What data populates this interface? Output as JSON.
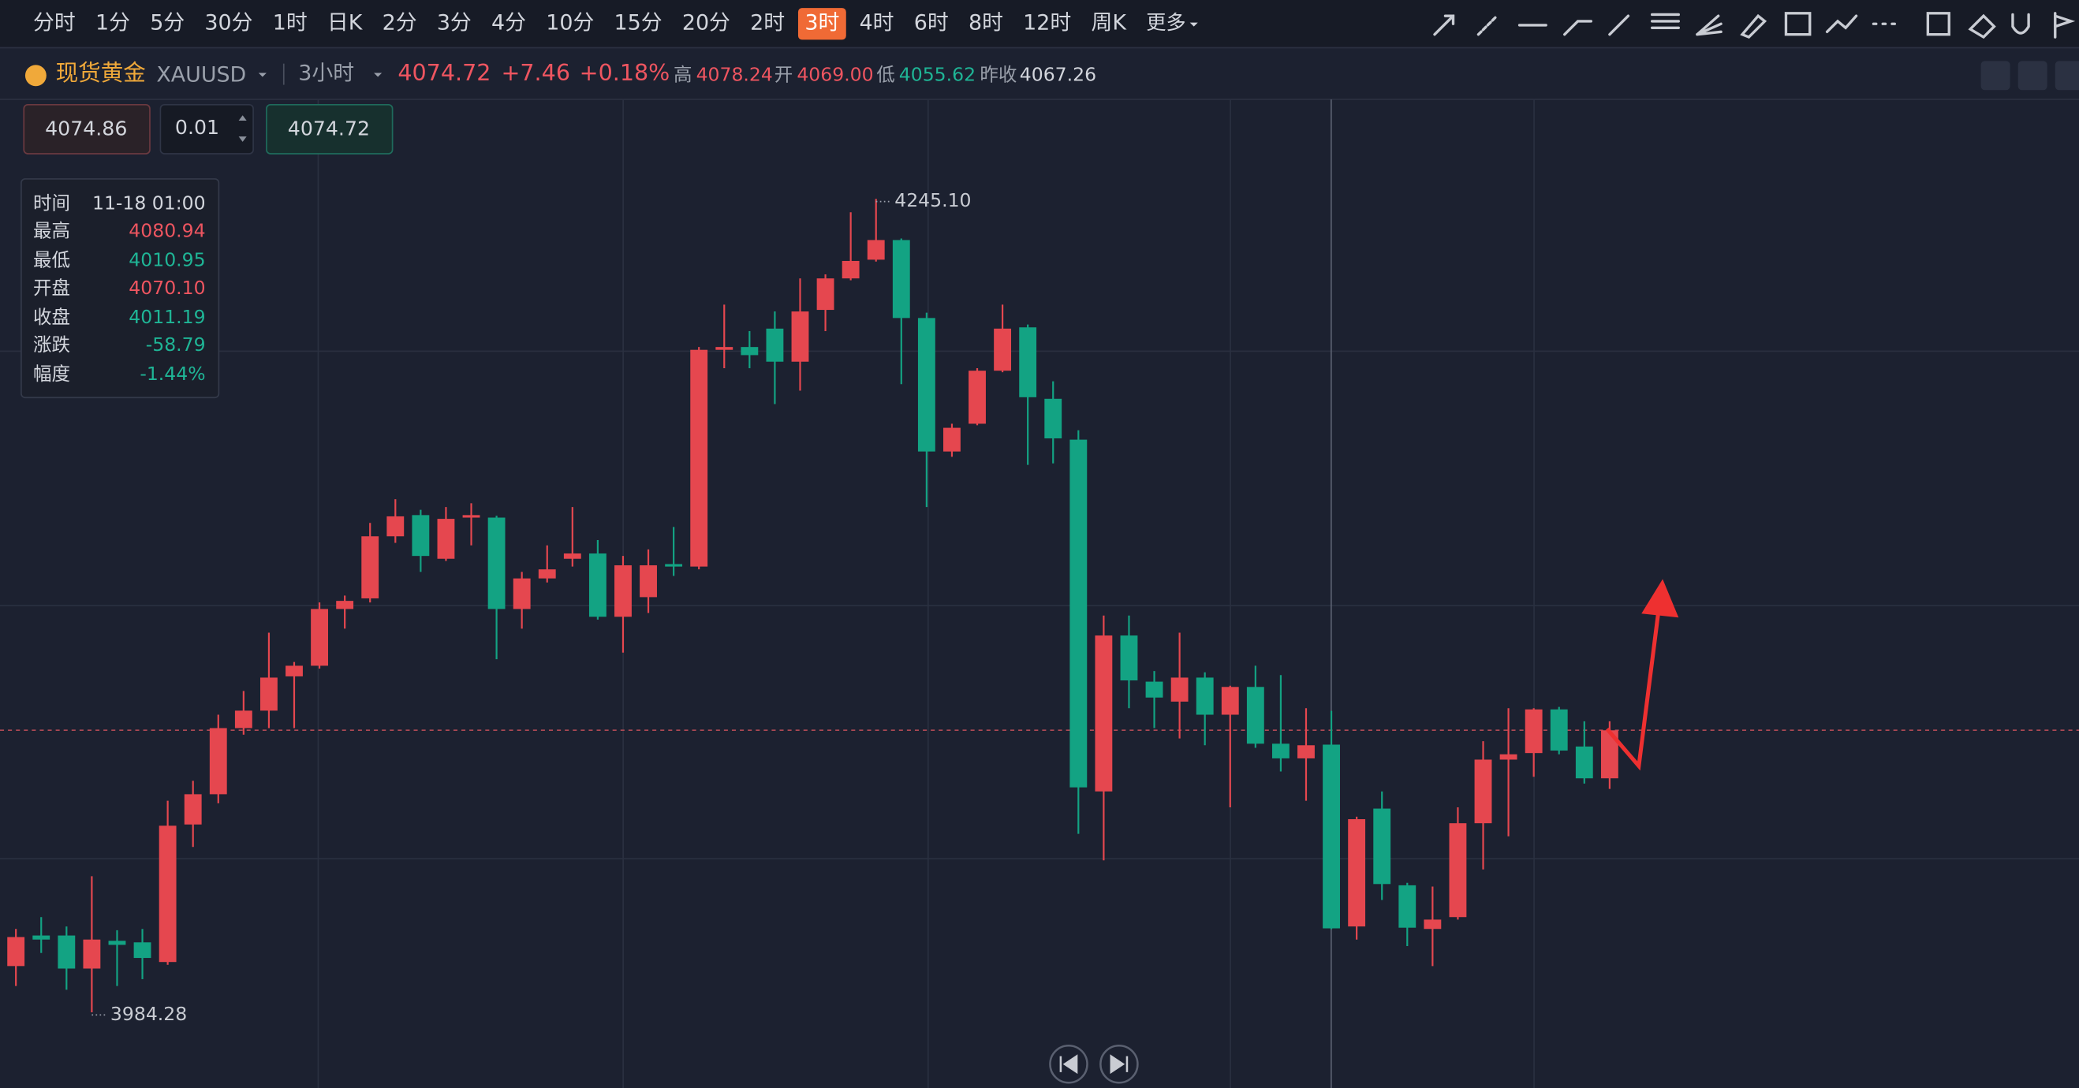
{
  "toolbar": {
    "intervals": [
      "分时",
      "1分",
      "5分",
      "30分",
      "1时",
      "日K",
      "2分",
      "3分",
      "4分",
      "10分",
      "15分",
      "20分",
      "2时",
      "3时",
      "4时",
      "6时",
      "8时",
      "12时",
      "周K"
    ],
    "active": 13,
    "more": "更多"
  },
  "header": {
    "name": "现货黄金",
    "symbol": "XAUUSD",
    "period": "3小时",
    "price": "4074.72",
    "change": "+7.46",
    "change_pct": "+0.18%",
    "high_label": "高",
    "high": "4078.24",
    "open_label": "开",
    "open": "4069.00",
    "low_label": "低",
    "low": "4055.62",
    "prev_close_label": "昨收",
    "prev_close": "4067.26"
  },
  "order": {
    "bid": "4074.86",
    "qty": "0.01",
    "ask": "4074.72"
  },
  "tooltip": {
    "rows": [
      [
        "时间",
        "11-18 01:00"
      ],
      [
        "最高",
        "4080.94"
      ],
      [
        "最低",
        "4010.95"
      ],
      [
        "开盘",
        "4070.10"
      ],
      [
        "收盘",
        "4011.19"
      ],
      [
        "涨跌",
        "-58.79"
      ],
      [
        "幅度",
        "-1.44%"
      ]
    ]
  },
  "chart_data": {
    "type": "candlestick",
    "up_color": "#e5474f",
    "down_color": "#13a383",
    "ylim": [
      3960,
      4277
    ],
    "last_price": 4074.72,
    "open": [
      3999.1,
      4008.9,
      4008.9,
      3998.3,
      4007.2,
      4006.7,
      4000.4,
      4044.5,
      4054.2,
      4075.4,
      4081.0,
      4092.0,
      4095.4,
      4113.6,
      4117.0,
      4136.9,
      4143.7,
      4129.7,
      4142.9,
      4142.9,
      4113.6,
      4123.4,
      4129.7,
      4131.4,
      4111.1,
      4117.4,
      4128.0,
      4127.2,
      4196.7,
      4197.6,
      4203.5,
      4192.9,
      4209.5,
      4219.6,
      4225.6,
      4231.9,
      4206.9,
      4164.1,
      4173.0,
      4190.0,
      4203.9,
      4181.0,
      4167.9,
      4055.1,
      4105.1,
      4090.3,
      4083.9,
      4091.6,
      4079.7,
      4088.6,
      4070.4,
      4065.7,
      4070.1,
      4011.8,
      4049.6,
      4025.0,
      4011.0,
      4014.8,
      4044.9,
      4065.3,
      4067.4,
      4081.4,
      4069.5,
      4059.3
    ],
    "high": [
      4011.0,
      4014.8,
      4011.8,
      4027.9,
      4010.6,
      4011.0,
      4052.1,
      4058.5,
      4079.7,
      4087.3,
      4106.0,
      4096.6,
      4115.7,
      4117.9,
      4141.2,
      4148.8,
      4145.4,
      4146.3,
      4147.5,
      4143.5,
      4125.5,
      4134.0,
      4146.3,
      4135.7,
      4130.6,
      4132.7,
      4139.9,
      4197.6,
      4211.2,
      4202.7,
      4209.0,
      4219.6,
      4220.9,
      4240.8,
      4245.1,
      4232.4,
      4208.6,
      4173.0,
      4190.8,
      4211.2,
      4204.8,
      4186.6,
      4170.9,
      4111.5,
      4111.5,
      4093.7,
      4106.0,
      4093.3,
      4089.0,
      4095.4,
      4092.4,
      4081.8,
      4080.94,
      4047.0,
      4055.1,
      4025.8,
      4024.6,
      4050.0,
      4071.2,
      4081.8,
      4081.8,
      4082.2,
      4077.6,
      4077.6
    ],
    "low": [
      3992.7,
      4003.3,
      3991.5,
      3984.28,
      3992.7,
      3994.9,
      3999.5,
      4037.3,
      4051.3,
      4073.3,
      4075.4,
      4075.4,
      4094.5,
      4107.3,
      4115.7,
      4134.8,
      4125.5,
      4129.0,
      4134.0,
      4097.5,
      4107.3,
      4122.1,
      4127.2,
      4110.2,
      4099.6,
      4112.3,
      4124.2,
      4126.3,
      4190.8,
      4190.8,
      4179.3,
      4183.6,
      4202.7,
      4219.0,
      4225.0,
      4185.7,
      4146.3,
      4162.4,
      4172.5,
      4189.5,
      4159.8,
      4160.3,
      4041.5,
      4033.0,
      4081.8,
      4075.4,
      4072.1,
      4069.9,
      4050.0,
      4069.1,
      4061.5,
      4052.1,
      4010.95,
      4007.6,
      4020.3,
      4005.5,
      3999.1,
      4014.0,
      4030.1,
      4040.7,
      4059.8,
      4067.0,
      4057.6,
      4055.9
    ],
    "close": [
      4008.4,
      4007.6,
      3998.3,
      4007.6,
      4005.9,
      4001.7,
      4044.1,
      4054.2,
      4075.4,
      4081.0,
      4091.6,
      4095.4,
      4113.6,
      4116.2,
      4136.9,
      4143.3,
      4130.6,
      4142.5,
      4143.7,
      4113.6,
      4123.4,
      4126.3,
      4131.4,
      4111.1,
      4127.6,
      4127.6,
      4127.2,
      4196.7,
      4197.6,
      4195.0,
      4192.9,
      4209.0,
      4219.6,
      4225.2,
      4231.9,
      4206.9,
      4164.1,
      4171.7,
      4190.0,
      4203.5,
      4181.5,
      4168.3,
      4056.4,
      4105.1,
      4090.7,
      4085.2,
      4091.6,
      4079.7,
      4088.6,
      4070.4,
      4065.7,
      4069.9,
      4011.19,
      4046.2,
      4025.4,
      4011.4,
      4014.0,
      4044.9,
      4065.3,
      4067.0,
      4081.4,
      4068.2,
      4059.3,
      4074.7
    ],
    "annotations": [
      {
        "value": 4245.1,
        "label": "4245.10"
      },
      {
        "value": 3984.28,
        "label": "3984.28"
      }
    ]
  }
}
